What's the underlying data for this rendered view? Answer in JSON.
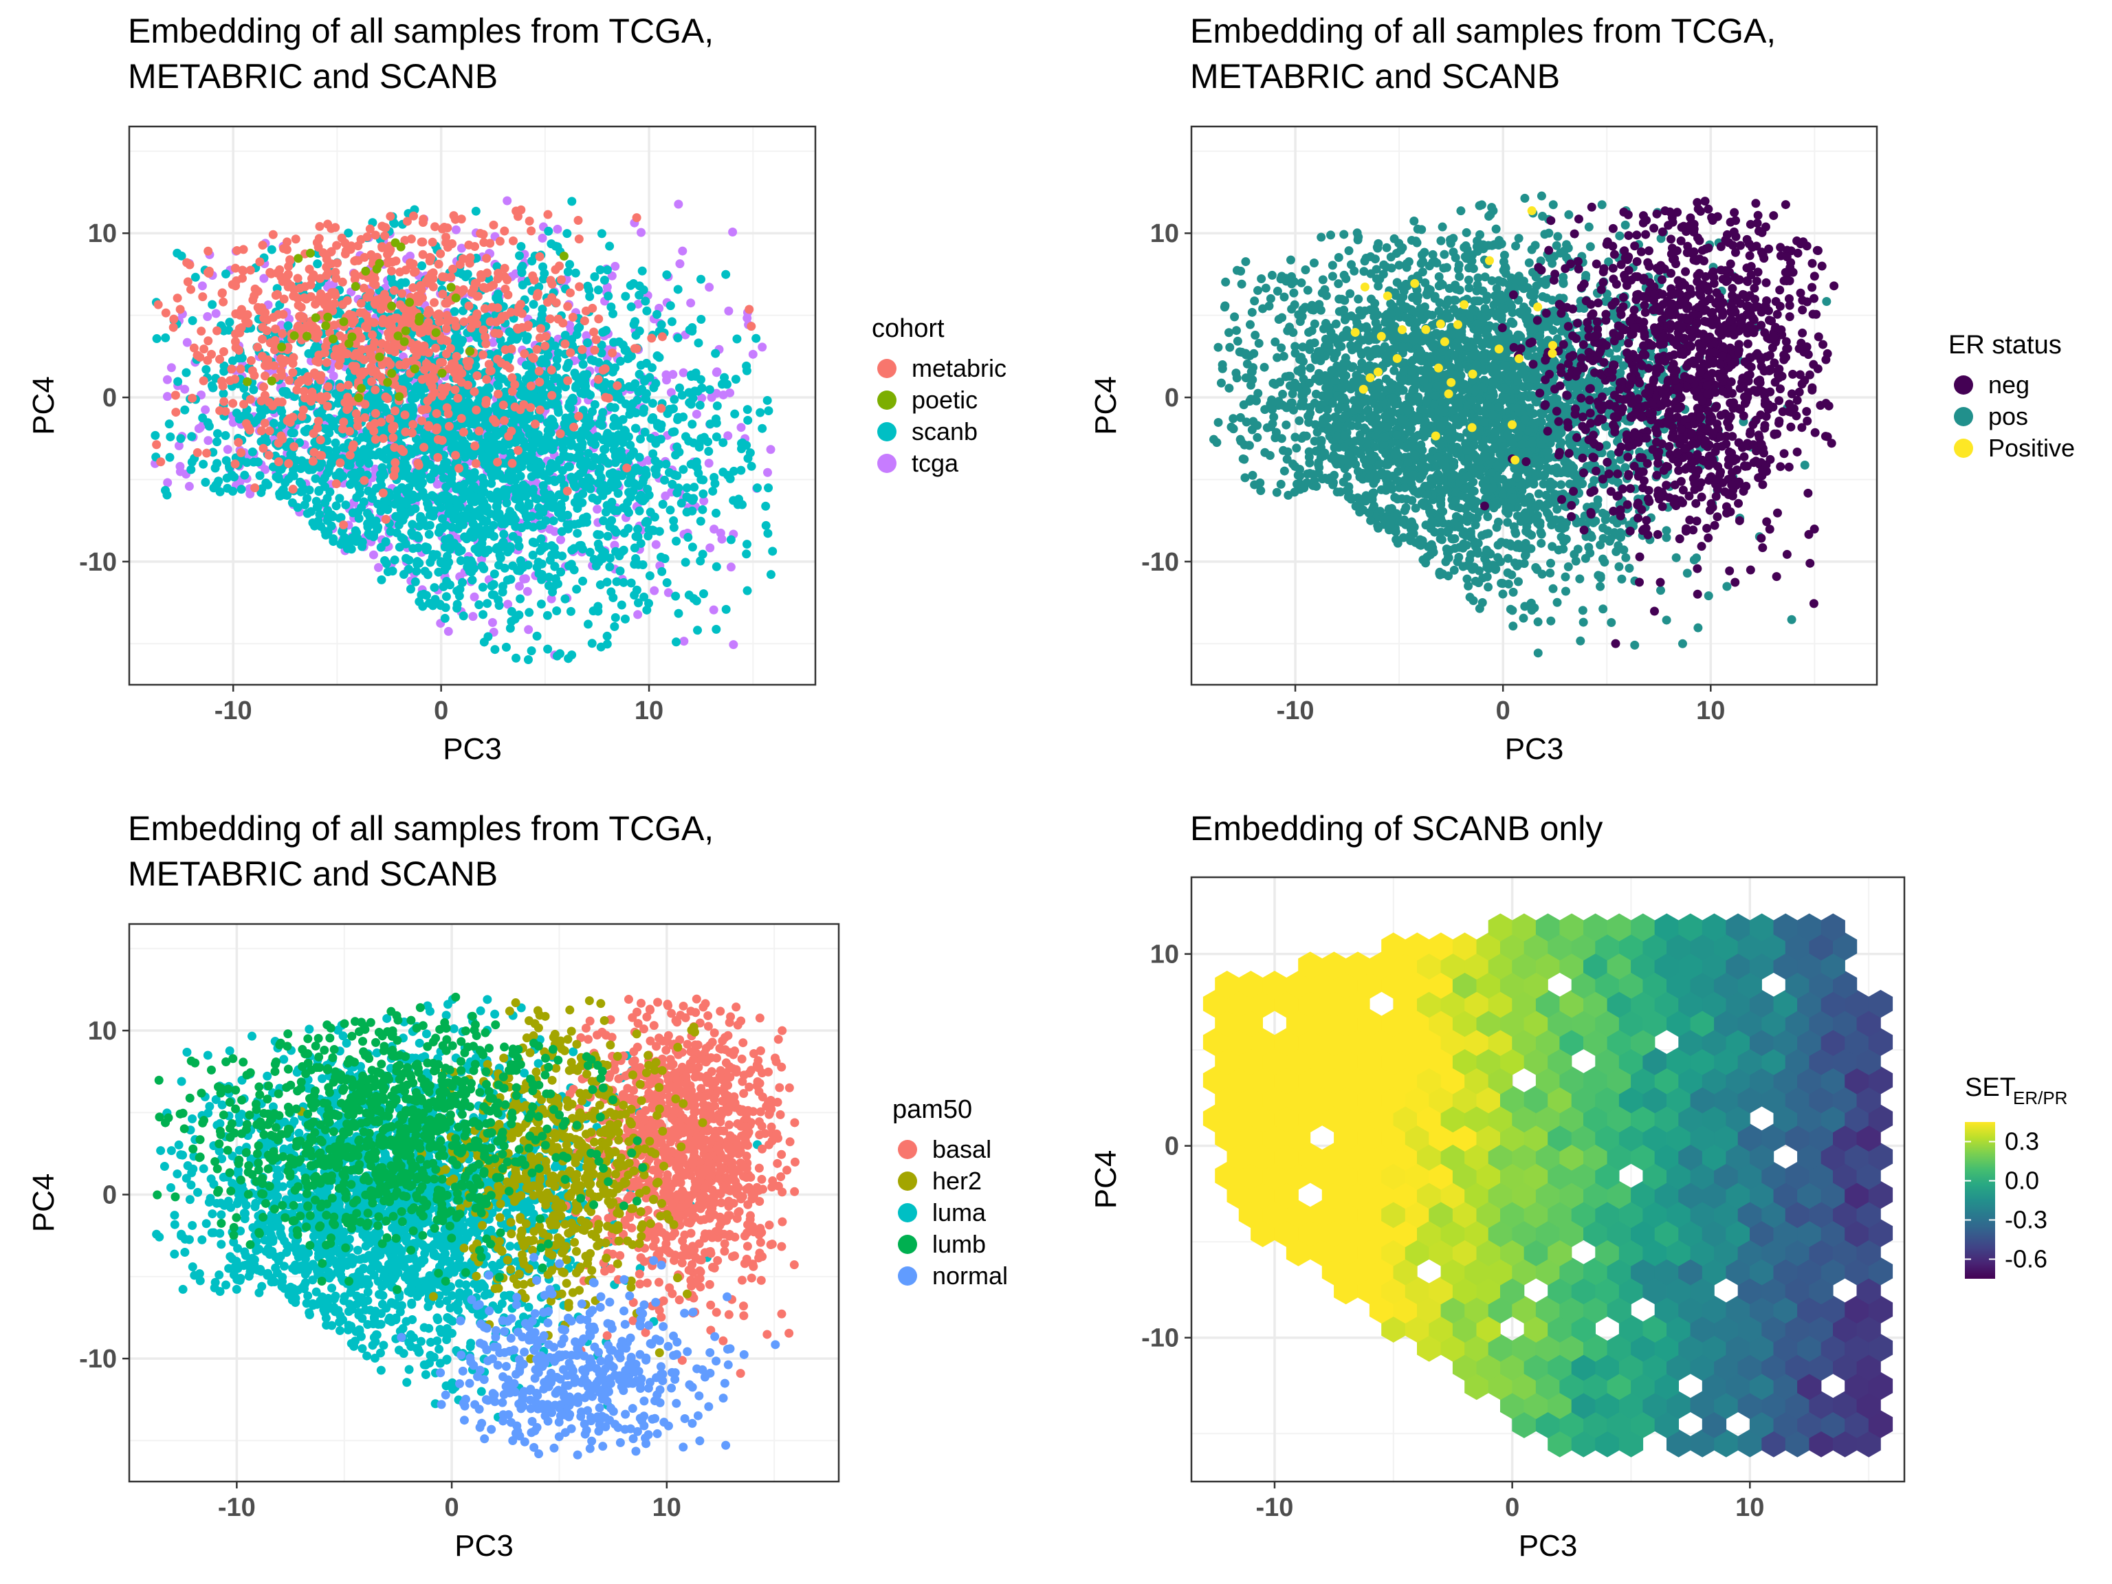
{
  "chart_data": [
    {
      "type": "scatter",
      "title": [
        "Embedding of all samples from TCGA,",
        "METABRIC and SCANB"
      ],
      "xlabel": "PC3",
      "ylabel": "PC4",
      "xlim": [
        -15,
        18
      ],
      "ylim": [
        -17.5,
        16.5
      ],
      "xticks": [
        -10,
        0,
        10
      ],
      "yticks": [
        -10,
        0,
        10
      ],
      "grid": true,
      "legend_position": "right",
      "legend": {
        "title": "cohort",
        "items": [
          {
            "label": "metabric",
            "color": "#F8766D"
          },
          {
            "label": "poetic",
            "color": "#7CAE00"
          },
          {
            "label": "scanb",
            "color": "#00BFC4"
          },
          {
            "label": "tcga",
            "color": "#C77CFF"
          }
        ]
      }
    },
    {
      "type": "scatter",
      "title": [
        "Embedding of all samples from TCGA,",
        "METABRIC and SCANB"
      ],
      "xlabel": "PC3",
      "ylabel": "PC4",
      "xlim": [
        -15,
        18
      ],
      "ylim": [
        -17.5,
        16.5
      ],
      "xticks": [
        -10,
        0,
        10
      ],
      "yticks": [
        -10,
        0,
        10
      ],
      "grid": true,
      "legend_position": "right",
      "legend": {
        "title": "ER status",
        "items": [
          {
            "label": "neg",
            "color": "#440154"
          },
          {
            "label": "pos",
            "color": "#21908C"
          },
          {
            "label": "Positive",
            "color": "#FDE725"
          }
        ]
      }
    },
    {
      "type": "scatter",
      "title": [
        "Embedding of all samples from TCGA,",
        "METABRIC and SCANB"
      ],
      "xlabel": "PC3",
      "ylabel": "PC4",
      "xlim": [
        -15,
        18
      ],
      "ylim": [
        -17.5,
        16.5
      ],
      "xticks": [
        -10,
        0,
        10
      ],
      "yticks": [
        -10,
        0,
        10
      ],
      "grid": true,
      "legend_position": "right",
      "legend": {
        "title": "pam50",
        "items": [
          {
            "label": "basal",
            "color": "#F8766D"
          },
          {
            "label": "her2",
            "color": "#A3A500"
          },
          {
            "label": "luma",
            "color": "#00BFC4"
          },
          {
            "label": "lumb",
            "color": "#00B050"
          },
          {
            "label": "normal",
            "color": "#619CFF"
          }
        ]
      }
    },
    {
      "type": "heatmap",
      "subtype": "hexbin",
      "title": [
        "Embedding of SCANB only"
      ],
      "xlabel": "PC3",
      "ylabel": "PC4",
      "xlim": [
        -13.5,
        16.5
      ],
      "ylim": [
        -17.5,
        14
      ],
      "xticks": [
        -10,
        0,
        10
      ],
      "yticks": [
        -10,
        0,
        10
      ],
      "grid": true,
      "legend_position": "right",
      "colorbar": {
        "title": "SET",
        "title_subscript": "ER/PR",
        "range": [
          -0.75,
          0.45
        ],
        "ticks": [
          0.3,
          0.0,
          -0.3,
          -0.6
        ],
        "tick_labels": [
          "0.3",
          "0.0",
          "-0.3",
          "-0.6"
        ],
        "colormap": "viridis"
      }
    }
  ]
}
